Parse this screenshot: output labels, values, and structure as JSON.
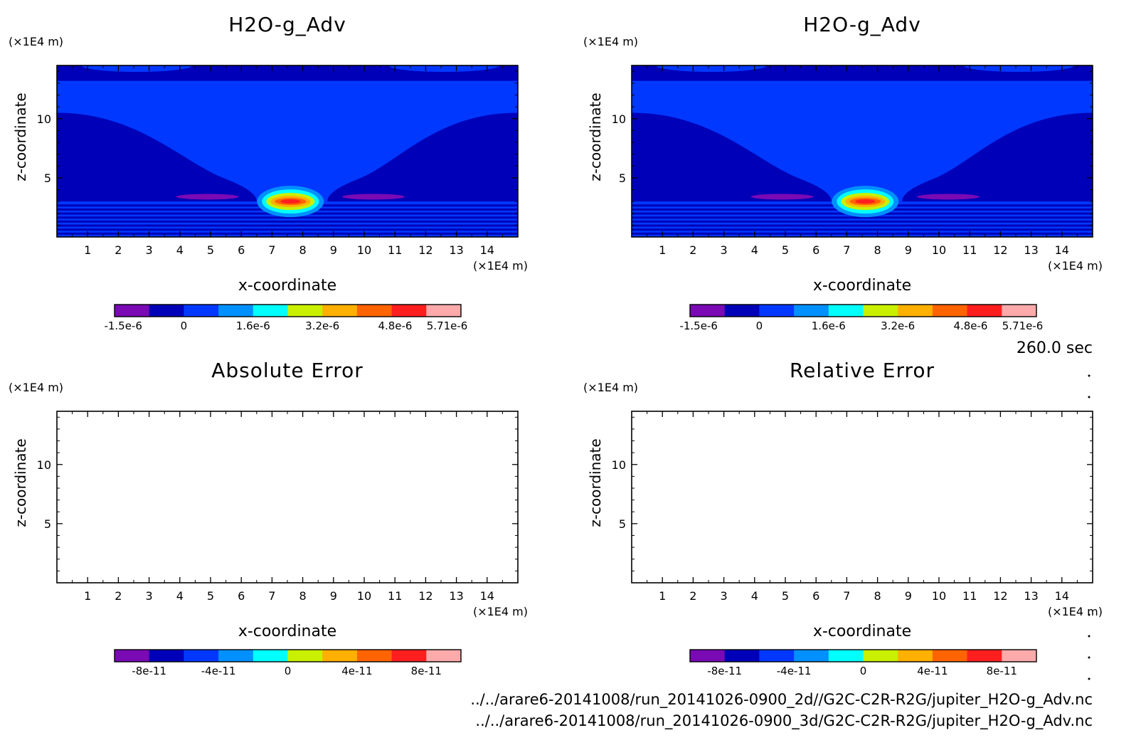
{
  "time_label": "260.0 sec",
  "files": [
    "../../arare6-20141008/run_20141026-0900_2d//G2C-C2R-R2G/jupiter_H2O-g_Adv.nc",
    "../../arare6-20141008/run_20141026-0900_3d/G2C-C2R-R2G/jupiter_H2O-g_Adv.nc"
  ],
  "chart_data": [
    {
      "type": "heatmap",
      "title": "H2O-g_Adv",
      "xlabel": "x-coordinate",
      "ylabel": "z-coordinate",
      "x_unit": "(×1E4 m)",
      "y_unit": "(×1E4 m)",
      "xlim": [
        0,
        15
      ],
      "ylim": [
        0,
        14.5
      ],
      "x_ticks": [
        1,
        2,
        3,
        4,
        5,
        6,
        7,
        8,
        9,
        10,
        11,
        12,
        13,
        14
      ],
      "y_ticks": [
        5,
        10
      ],
      "colorbar": {
        "ticks": [
          "-1.5e-6",
          "0",
          "1.6e-6",
          "3.2e-6",
          "4.8e-6",
          "5.71e-6"
        ],
        "colors": [
          "#7a0ab4",
          "#0000b8",
          "#0038ff",
          "#0090ff",
          "#00ffff",
          "#c8f000",
          "#ffb000",
          "#ff6400",
          "#ff1e1e",
          "#ffaaaa"
        ]
      },
      "features": [
        {
          "kind": "plume",
          "x_center": 7.6,
          "z_center": 3.4,
          "max": "5.71e-6"
        },
        {
          "kind": "negative-lobe",
          "x_center": 4.9,
          "z_center": 3.4,
          "value": "-1.5e-6"
        },
        {
          "kind": "negative-lobe",
          "x_center": 10.3,
          "z_center": 3.4,
          "value": "-1.5e-6"
        }
      ]
    },
    {
      "type": "heatmap",
      "title": "H2O-g_Adv",
      "xlabel": "x-coordinate",
      "ylabel": "z-coordinate",
      "x_unit": "(×1E4 m)",
      "y_unit": "(×1E4 m)",
      "xlim": [
        0,
        15
      ],
      "ylim": [
        0,
        14.5
      ],
      "x_ticks": [
        1,
        2,
        3,
        4,
        5,
        6,
        7,
        8,
        9,
        10,
        11,
        12,
        13,
        14
      ],
      "y_ticks": [
        5,
        10
      ],
      "colorbar": {
        "ticks": [
          "-1.5e-6",
          "0",
          "1.6e-6",
          "3.2e-6",
          "4.8e-6",
          "5.71e-6"
        ],
        "colors": [
          "#7a0ab4",
          "#0000b8",
          "#0038ff",
          "#0090ff",
          "#00ffff",
          "#c8f000",
          "#ffb000",
          "#ff6400",
          "#ff1e1e",
          "#ffaaaa"
        ]
      },
      "features": [
        {
          "kind": "plume",
          "x_center": 7.6,
          "z_center": 3.4,
          "max": "5.71e-6"
        },
        {
          "kind": "negative-lobe",
          "x_center": 4.9,
          "z_center": 3.4,
          "value": "-1.5e-6"
        },
        {
          "kind": "negative-lobe",
          "x_center": 10.3,
          "z_center": 3.4,
          "value": "-1.5e-6"
        }
      ]
    },
    {
      "type": "heatmap",
      "title": "Absolute Error",
      "xlabel": "x-coordinate",
      "ylabel": "z-coordinate",
      "x_unit": "(×1E4 m)",
      "y_unit": "(×1E4 m)",
      "xlim": [
        0,
        15
      ],
      "ylim": [
        0,
        14.5
      ],
      "x_ticks": [
        1,
        2,
        3,
        4,
        5,
        6,
        7,
        8,
        9,
        10,
        11,
        12,
        13,
        14
      ],
      "y_ticks": [
        5,
        10
      ],
      "colorbar": {
        "ticks": [
          "-8e-11",
          "-4e-11",
          "0",
          "4e-11",
          "8e-11"
        ],
        "colors": [
          "#7a0ab4",
          "#0000b8",
          "#0038ff",
          "#0090ff",
          "#00ffff",
          "#c8f000",
          "#ffb000",
          "#ff6400",
          "#ff1e1e",
          "#ffaaaa"
        ]
      },
      "empty": true
    },
    {
      "type": "heatmap",
      "title": "Relative Error",
      "xlabel": "x-coordinate",
      "ylabel": "z-coordinate",
      "x_unit": "(×1E4 m)",
      "y_unit": "(×1E4 m)",
      "xlim": [
        0,
        15
      ],
      "ylim": [
        0,
        14.5
      ],
      "x_ticks": [
        1,
        2,
        3,
        4,
        5,
        6,
        7,
        8,
        9,
        10,
        11,
        12,
        13,
        14
      ],
      "y_ticks": [
        5,
        10
      ],
      "colorbar": {
        "ticks": [
          "-8e-11",
          "-4e-11",
          "0",
          "4e-11",
          "8e-11"
        ],
        "colors": [
          "#7a0ab4",
          "#0000b8",
          "#0038ff",
          "#0090ff",
          "#00ffff",
          "#c8f000",
          "#ffb000",
          "#ff6400",
          "#ff1e1e",
          "#ffaaaa"
        ]
      },
      "empty": true
    }
  ]
}
